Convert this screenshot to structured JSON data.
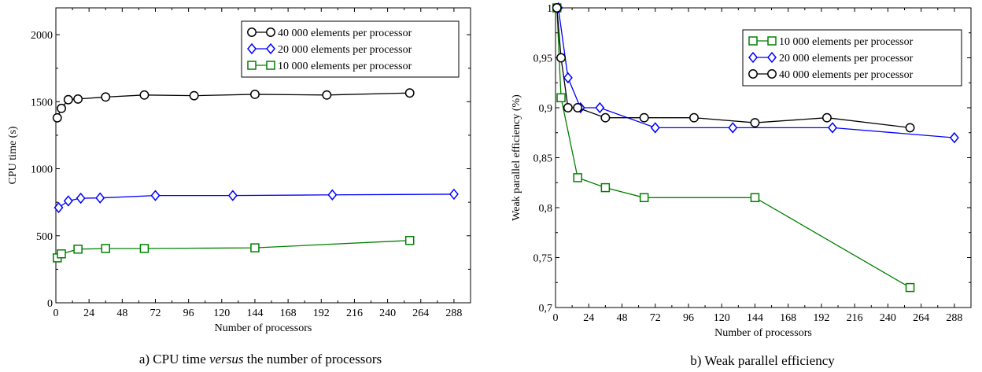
{
  "chart_data": [
    {
      "type": "line",
      "xlabel": "Number of processors",
      "ylabel": "CPU time (s)",
      "caption": {
        "prefix": "a) CPU time ",
        "emphasis": "versus",
        "suffix": " the number of processors"
      },
      "xlim": [
        0,
        300
      ],
      "ylim": [
        0,
        2200
      ],
      "xticks": [
        0,
        24,
        48,
        72,
        96,
        120,
        144,
        168,
        192,
        216,
        240,
        264,
        288
      ],
      "yticks": [
        0,
        500,
        1000,
        1500,
        2000
      ],
      "ytick_labels": [
        "0",
        "500",
        "1000",
        "1500",
        "2000"
      ],
      "legend_position": "top-right",
      "series": [
        {
          "name": "40 000 elements per processor",
          "color": "#000000",
          "marker": "circle",
          "x": [
            1,
            4,
            9,
            16,
            36,
            64,
            100,
            144,
            196,
            256
          ],
          "y": [
            1380,
            1450,
            1515,
            1520,
            1535,
            1550,
            1545,
            1555,
            1550,
            1565
          ]
        },
        {
          "name": "20 000 elements per processor",
          "color": "#0000ff",
          "marker": "diamond",
          "x": [
            2,
            9,
            18,
            32,
            72,
            128,
            200,
            288
          ],
          "y": [
            710,
            760,
            780,
            782,
            800,
            800,
            805,
            810
          ]
        },
        {
          "name": "10 000 elements per processor",
          "color": "#008000",
          "marker": "square",
          "x": [
            1,
            4,
            16,
            36,
            64,
            144,
            256
          ],
          "y": [
            335,
            365,
            400,
            405,
            405,
            410,
            465
          ]
        }
      ]
    },
    {
      "type": "line",
      "xlabel": "Number of processors",
      "ylabel": "Weak parallel efficiency (%)",
      "caption": {
        "prefix": "b) Weak parallel efficiency",
        "emphasis": "",
        "suffix": ""
      },
      "xlim": [
        0,
        300
      ],
      "ylim": [
        0.7,
        1.0
      ],
      "xticks": [
        0,
        24,
        48,
        72,
        96,
        120,
        144,
        168,
        192,
        216,
        240,
        264,
        288
      ],
      "yticks": [
        0.7,
        0.75,
        0.8,
        0.85,
        0.9,
        0.95,
        1.0
      ],
      "ytick_labels": [
        "0,7",
        "0,75",
        "0,8",
        "0,85",
        "0,9",
        "0,95",
        "1"
      ],
      "legend_position": "top-right",
      "series": [
        {
          "name": "10 000 elements per processor",
          "color": "#008000",
          "marker": "square",
          "x": [
            1,
            4,
            16,
            36,
            64,
            144,
            256
          ],
          "y": [
            1.0,
            0.91,
            0.83,
            0.82,
            0.81,
            0.81,
            0.72
          ]
        },
        {
          "name": "20 000 elements per processor",
          "color": "#0000ff",
          "marker": "diamond",
          "x": [
            2,
            9,
            18,
            32,
            72,
            128,
            200,
            288
          ],
          "y": [
            1.0,
            0.93,
            0.9,
            0.9,
            0.88,
            0.88,
            0.88,
            0.87
          ]
        },
        {
          "name": "40 000 elements per processor",
          "color": "#000000",
          "marker": "circle",
          "x": [
            1,
            4,
            9,
            16,
            36,
            64,
            100,
            144,
            196,
            256
          ],
          "y": [
            1.0,
            0.95,
            0.9,
            0.9,
            0.89,
            0.89,
            0.89,
            0.885,
            0.89,
            0.88
          ]
        }
      ]
    }
  ]
}
